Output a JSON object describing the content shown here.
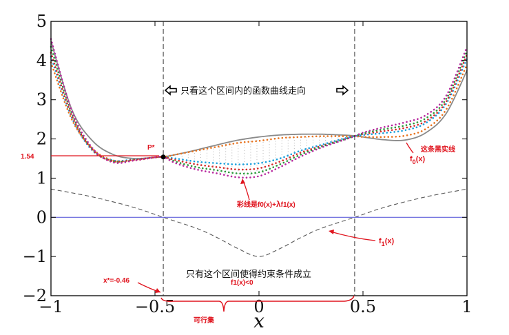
{
  "chart_data": {
    "type": "line",
    "title": "",
    "xlabel": "x",
    "ylabel": "",
    "xlim": [
      -1,
      1
    ],
    "ylim": [
      -2,
      5
    ],
    "xticks": [
      -1,
      -0.5,
      0,
      0.5,
      1
    ],
    "xtick_labels": [
      "−1",
      "−0.5",
      "0",
      "0.5",
      "1"
    ],
    "yticks": [
      -2,
      -1,
      0,
      1,
      2,
      3,
      4,
      5
    ],
    "ytick_labels": [
      "−2",
      "−1",
      "0",
      "1",
      "2",
      "3",
      "4",
      "5"
    ],
    "grid": false,
    "feasible_bounds": [
      -0.46,
      0.46
    ],
    "series": [
      {
        "role": "f0",
        "color": "#8a8a8a",
        "style": "solid",
        "x": [
          -1,
          -0.9,
          -0.8,
          -0.7,
          -0.6,
          -0.5,
          -0.46,
          -0.4,
          -0.3,
          -0.2,
          -0.1,
          0,
          0.1,
          0.2,
          0.3,
          0.4,
          0.46,
          0.5,
          0.6,
          0.7,
          0.8,
          0.9,
          1
        ],
        "y": [
          4.5,
          2.75,
          1.95,
          1.6,
          1.5,
          1.53,
          1.54,
          1.6,
          1.72,
          1.85,
          1.97,
          2.05,
          2.1,
          2.12,
          2.12,
          2.1,
          2.08,
          2.05,
          1.98,
          1.97,
          2.15,
          2.65,
          3.75
        ]
      },
      {
        "role": "f1",
        "color": "#555555",
        "style": "dashed",
        "x": [
          -1,
          -0.8,
          -0.6,
          -0.46,
          -0.3,
          -0.2,
          -0.1,
          0,
          0.1,
          0.2,
          0.3,
          0.46,
          0.6,
          0.8,
          1
        ],
        "y": [
          0.72,
          0.52,
          0.25,
          0,
          -0.28,
          -0.52,
          -0.8,
          -1.0,
          -0.8,
          -0.52,
          -0.28,
          0,
          0.25,
          0.52,
          0.72
        ]
      },
      {
        "role": "mix",
        "color": "#e8731e",
        "style": "dotted",
        "x": [
          -1,
          -0.9,
          -0.8,
          -0.7,
          -0.6,
          -0.5,
          -0.46,
          -0.4,
          -0.3,
          -0.2,
          -0.1,
          0,
          0.1,
          0.2,
          0.3,
          0.4,
          0.46,
          0.5,
          0.6,
          0.7,
          0.8,
          0.9,
          1
        ],
        "y": [
          3.95,
          2.5,
          1.75,
          1.45,
          1.45,
          1.53,
          1.54,
          1.6,
          1.7,
          1.8,
          1.9,
          1.95,
          2.02,
          2.05,
          2.07,
          2.07,
          2.07,
          2.05,
          2.05,
          2.08,
          2.25,
          2.75,
          3.9
        ]
      },
      {
        "role": "mix",
        "color": "#1aa0dc",
        "style": "dotted",
        "x": [
          -1,
          -0.9,
          -0.8,
          -0.7,
          -0.6,
          -0.5,
          -0.46,
          -0.4,
          -0.3,
          -0.2,
          -0.1,
          0,
          0.1,
          0.2,
          0.3,
          0.4,
          0.46,
          0.5,
          0.6,
          0.7,
          0.8,
          0.9,
          1
        ],
        "y": [
          4.1,
          2.55,
          1.7,
          1.45,
          1.48,
          1.53,
          1.54,
          1.5,
          1.42,
          1.38,
          1.35,
          1.38,
          1.5,
          1.7,
          1.85,
          2.0,
          2.07,
          2.1,
          2.15,
          2.22,
          2.4,
          2.9,
          4.05
        ]
      },
      {
        "role": "mix",
        "color": "#d52a2a",
        "style": "dotted",
        "x": [
          -1,
          -0.9,
          -0.8,
          -0.7,
          -0.6,
          -0.5,
          -0.46,
          -0.4,
          -0.3,
          -0.2,
          -0.1,
          0,
          0.1,
          0.2,
          0.3,
          0.4,
          0.46,
          0.5,
          0.6,
          0.7,
          0.8,
          0.9,
          1
        ],
        "y": [
          4.2,
          2.6,
          1.72,
          1.43,
          1.47,
          1.53,
          1.54,
          1.46,
          1.35,
          1.28,
          1.22,
          1.25,
          1.42,
          1.65,
          1.82,
          1.98,
          2.07,
          2.12,
          2.2,
          2.28,
          2.45,
          2.95,
          4.15
        ]
      },
      {
        "role": "mix",
        "color": "#2a9a3a",
        "style": "dotted",
        "x": [
          -1,
          -0.9,
          -0.8,
          -0.7,
          -0.6,
          -0.5,
          -0.46,
          -0.4,
          -0.3,
          -0.2,
          -0.1,
          0,
          0.1,
          0.2,
          0.3,
          0.4,
          0.46,
          0.5,
          0.6,
          0.7,
          0.8,
          0.9,
          1
        ],
        "y": [
          4.35,
          2.65,
          1.74,
          1.42,
          1.46,
          1.53,
          1.54,
          1.42,
          1.28,
          1.2,
          1.12,
          1.15,
          1.35,
          1.6,
          1.8,
          1.97,
          2.07,
          2.14,
          2.25,
          2.34,
          2.52,
          3.02,
          4.25
        ]
      },
      {
        "role": "mix",
        "color": "#b8279e",
        "style": "dotted",
        "x": [
          -1,
          -0.9,
          -0.8,
          -0.7,
          -0.6,
          -0.5,
          -0.46,
          -0.4,
          -0.3,
          -0.2,
          -0.1,
          0,
          0.1,
          0.2,
          0.3,
          0.4,
          0.46,
          0.5,
          0.6,
          0.7,
          0.8,
          0.9,
          1
        ],
        "y": [
          4.55,
          2.72,
          1.76,
          1.4,
          1.45,
          1.53,
          1.54,
          1.38,
          1.22,
          1.12,
          1.02,
          1.05,
          1.28,
          1.55,
          1.78,
          1.96,
          2.07,
          2.16,
          2.3,
          2.42,
          2.6,
          3.1,
          4.35
        ]
      }
    ],
    "key_point": {
      "label": "P*",
      "x": -0.46,
      "y": 1.54
    },
    "annotations": {
      "arrow_text": "只看这个区间内的函数曲线走向",
      "constraint_text": "只有这个区间使得约束条件成立",
      "constraint_sub": "f1(x)<0",
      "value_154": "1.54",
      "xstar": "x*=-0.46",
      "feasible_set": "可行集",
      "f0_black": "这条黑实线",
      "f0_label_f": "f",
      "f0_label_sub": "0",
      "f0_label_x": "(x)",
      "mix_label_a": "彩线是f0(x)+",
      "mix_label_lambda": "λ",
      "mix_label_b": "f1(x)",
      "f1_label_f": "f",
      "f1_label_sub": "1",
      "f1_label_x": "(x)"
    },
    "colors": {
      "axis": "#000000",
      "zero_line": "#4a4ad6",
      "annotation_red": "#e0141e",
      "point": "#000000",
      "shade_dots": "#b4b4b4"
    }
  }
}
